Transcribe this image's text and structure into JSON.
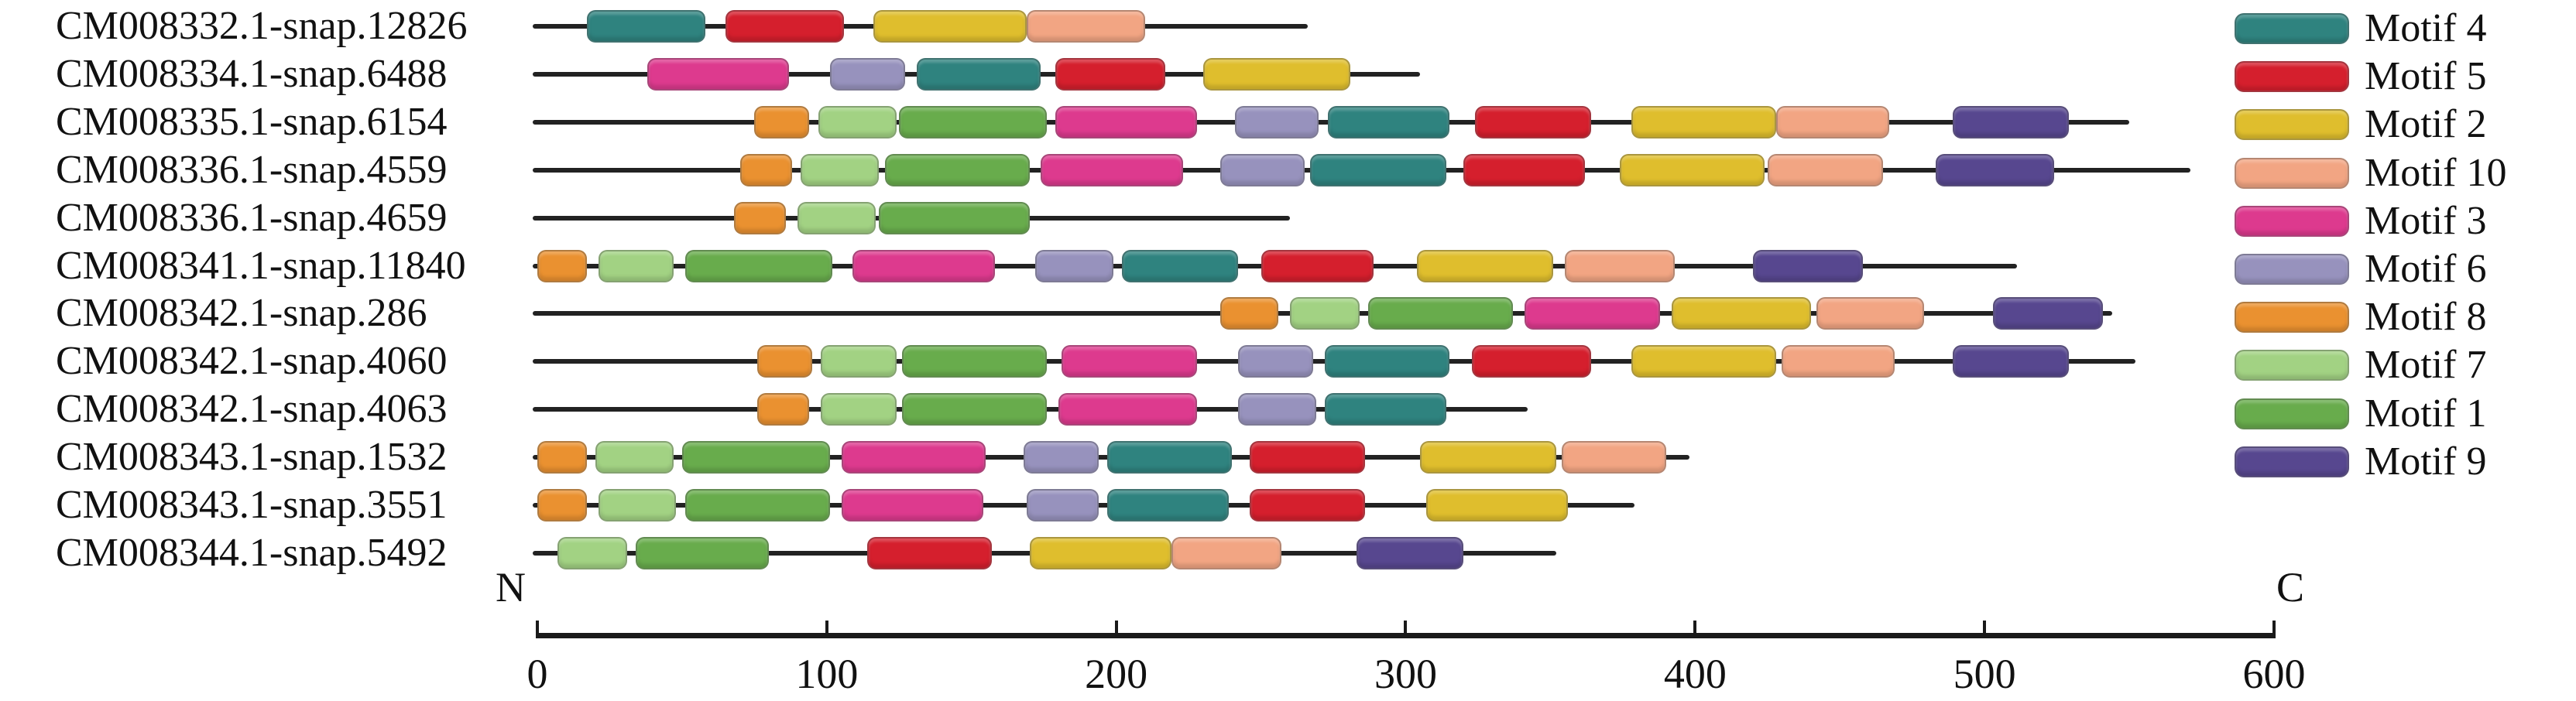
{
  "chart_data": {
    "type": "motif-map",
    "description": "Conserved motif distribution diagram (MEME-style) for 12 gene models",
    "axis": {
      "min": 0,
      "max": 600,
      "ticks": [
        0,
        100,
        200,
        300,
        400,
        500,
        600
      ],
      "n_label": "N",
      "c_label": "C"
    },
    "legend_position": "right",
    "legend": [
      {
        "id": "motif4",
        "label": "Motif 4",
        "color": "#2F837F"
      },
      {
        "id": "motif5",
        "label": "Motif 5",
        "color": "#D51F2D"
      },
      {
        "id": "motif2",
        "label": "Motif 2",
        "color": "#DFBE2D"
      },
      {
        "id": "motif10",
        "label": "Motif 10",
        "color": "#F2A583"
      },
      {
        "id": "motif3",
        "label": "Motif 3",
        "color": "#DD3A8E"
      },
      {
        "id": "motif6",
        "label": "Motif 6",
        "color": "#9792BD"
      },
      {
        "id": "motif8",
        "label": "Motif 8",
        "color": "#EA9130"
      },
      {
        "id": "motif7",
        "label": "Motif 7",
        "color": "#A2D283"
      },
      {
        "id": "motif1",
        "label": "Motif 1",
        "color": "#68AC4C"
      },
      {
        "id": "motif9",
        "label": "Motif 9",
        "color": "#57478F"
      }
    ],
    "genes": [
      {
        "name": "CM008332.1-snap.12826",
        "length": 265,
        "motifs": [
          {
            "motif": "motif4",
            "start": 17,
            "end": 58
          },
          {
            "motif": "motif5",
            "start": 65,
            "end": 106
          },
          {
            "motif": "motif2",
            "start": 116,
            "end": 169
          },
          {
            "motif": "motif10",
            "start": 169,
            "end": 210
          }
        ]
      },
      {
        "name": "CM008334.1-snap.6488",
        "length": 304,
        "motifs": [
          {
            "motif": "motif3",
            "start": 38,
            "end": 87
          },
          {
            "motif": "motif6",
            "start": 101,
            "end": 127
          },
          {
            "motif": "motif4",
            "start": 131,
            "end": 174
          },
          {
            "motif": "motif5",
            "start": 179,
            "end": 217
          },
          {
            "motif": "motif2",
            "start": 230,
            "end": 281
          }
        ]
      },
      {
        "name": "CM008335.1-snap.6154",
        "length": 549,
        "motifs": [
          {
            "motif": "motif8",
            "start": 75,
            "end": 94
          },
          {
            "motif": "motif7",
            "start": 97,
            "end": 124
          },
          {
            "motif": "motif1",
            "start": 125,
            "end": 176
          },
          {
            "motif": "motif3",
            "start": 179,
            "end": 228
          },
          {
            "motif": "motif6",
            "start": 241,
            "end": 270
          },
          {
            "motif": "motif4",
            "start": 273,
            "end": 315
          },
          {
            "motif": "motif5",
            "start": 324,
            "end": 364
          },
          {
            "motif": "motif2",
            "start": 378,
            "end": 428
          },
          {
            "motif": "motif10",
            "start": 428,
            "end": 467
          },
          {
            "motif": "motif9",
            "start": 489,
            "end": 529
          }
        ]
      },
      {
        "name": "CM008336.1-snap.4559",
        "length": 570,
        "motifs": [
          {
            "motif": "motif8",
            "start": 70,
            "end": 88
          },
          {
            "motif": "motif7",
            "start": 91,
            "end": 118
          },
          {
            "motif": "motif1",
            "start": 120,
            "end": 170
          },
          {
            "motif": "motif3",
            "start": 174,
            "end": 223
          },
          {
            "motif": "motif6",
            "start": 236,
            "end": 265
          },
          {
            "motif": "motif4",
            "start": 267,
            "end": 314
          },
          {
            "motif": "motif5",
            "start": 320,
            "end": 362
          },
          {
            "motif": "motif2",
            "start": 374,
            "end": 424
          },
          {
            "motif": "motif10",
            "start": 425,
            "end": 465
          },
          {
            "motif": "motif9",
            "start": 483,
            "end": 524
          }
        ]
      },
      {
        "name": "CM008336.1-snap.4659",
        "length": 259,
        "motifs": [
          {
            "motif": "motif8",
            "start": 68,
            "end": 86
          },
          {
            "motif": "motif7",
            "start": 90,
            "end": 117
          },
          {
            "motif": "motif1",
            "start": 118,
            "end": 170
          }
        ]
      },
      {
        "name": "CM008341.1-snap.11840",
        "length": 510,
        "motifs": [
          {
            "motif": "motif8",
            "start": 0,
            "end": 17
          },
          {
            "motif": "motif7",
            "start": 21,
            "end": 47
          },
          {
            "motif": "motif1",
            "start": 51,
            "end": 102
          },
          {
            "motif": "motif3",
            "start": 109,
            "end": 158
          },
          {
            "motif": "motif6",
            "start": 172,
            "end": 199
          },
          {
            "motif": "motif4",
            "start": 202,
            "end": 242
          },
          {
            "motif": "motif5",
            "start": 250,
            "end": 289
          },
          {
            "motif": "motif2",
            "start": 304,
            "end": 351
          },
          {
            "motif": "motif10",
            "start": 355,
            "end": 393
          },
          {
            "motif": "motif9",
            "start": 420,
            "end": 458
          }
        ]
      },
      {
        "name": "CM008342.1-snap.286",
        "length": 543,
        "motifs": [
          {
            "motif": "motif8",
            "start": 236,
            "end": 256
          },
          {
            "motif": "motif7",
            "start": 260,
            "end": 284
          },
          {
            "motif": "motif1",
            "start": 287,
            "end": 337
          },
          {
            "motif": "motif3",
            "start": 341,
            "end": 388
          },
          {
            "motif": "motif2",
            "start": 392,
            "end": 440
          },
          {
            "motif": "motif10",
            "start": 442,
            "end": 479
          },
          {
            "motif": "motif9",
            "start": 503,
            "end": 541
          }
        ]
      },
      {
        "name": "CM008342.1-snap.4060",
        "length": 551,
        "motifs": [
          {
            "motif": "motif8",
            "start": 76,
            "end": 95
          },
          {
            "motif": "motif7",
            "start": 98,
            "end": 124
          },
          {
            "motif": "motif1",
            "start": 126,
            "end": 176
          },
          {
            "motif": "motif3",
            "start": 181,
            "end": 228
          },
          {
            "motif": "motif6",
            "start": 242,
            "end": 268
          },
          {
            "motif": "motif4",
            "start": 272,
            "end": 315
          },
          {
            "motif": "motif5",
            "start": 323,
            "end": 364
          },
          {
            "motif": "motif2",
            "start": 378,
            "end": 428
          },
          {
            "motif": "motif10",
            "start": 430,
            "end": 469
          },
          {
            "motif": "motif9",
            "start": 489,
            "end": 529
          }
        ]
      },
      {
        "name": "CM008342.1-snap.4063",
        "length": 341,
        "motifs": [
          {
            "motif": "motif8",
            "start": 76,
            "end": 94
          },
          {
            "motif": "motif7",
            "start": 98,
            "end": 124
          },
          {
            "motif": "motif1",
            "start": 126,
            "end": 176
          },
          {
            "motif": "motif3",
            "start": 180,
            "end": 228
          },
          {
            "motif": "motif6",
            "start": 242,
            "end": 269
          },
          {
            "motif": "motif4",
            "start": 272,
            "end": 314
          }
        ]
      },
      {
        "name": "CM008343.1-snap.1532",
        "length": 397,
        "motifs": [
          {
            "motif": "motif8",
            "start": 0,
            "end": 17
          },
          {
            "motif": "motif7",
            "start": 20,
            "end": 47
          },
          {
            "motif": "motif1",
            "start": 50,
            "end": 101
          },
          {
            "motif": "motif3",
            "start": 105,
            "end": 155
          },
          {
            "motif": "motif6",
            "start": 168,
            "end": 194
          },
          {
            "motif": "motif4",
            "start": 197,
            "end": 240
          },
          {
            "motif": "motif5",
            "start": 246,
            "end": 286
          },
          {
            "motif": "motif2",
            "start": 305,
            "end": 352
          },
          {
            "motif": "motif10",
            "start": 354,
            "end": 390
          }
        ]
      },
      {
        "name": "CM008343.1-snap.3551",
        "length": 378,
        "motifs": [
          {
            "motif": "motif8",
            "start": 0,
            "end": 17
          },
          {
            "motif": "motif7",
            "start": 21,
            "end": 48
          },
          {
            "motif": "motif1",
            "start": 51,
            "end": 101
          },
          {
            "motif": "motif3",
            "start": 105,
            "end": 154
          },
          {
            "motif": "motif6",
            "start": 169,
            "end": 194
          },
          {
            "motif": "motif4",
            "start": 197,
            "end": 239
          },
          {
            "motif": "motif5",
            "start": 246,
            "end": 286
          },
          {
            "motif": "motif2",
            "start": 307,
            "end": 356
          }
        ]
      },
      {
        "name": "CM008344.1-snap.5492",
        "length": 351,
        "motifs": [
          {
            "motif": "motif7",
            "start": 7,
            "end": 31
          },
          {
            "motif": "motif1",
            "start": 34,
            "end": 80
          },
          {
            "motif": "motif5",
            "start": 114,
            "end": 157
          },
          {
            "motif": "motif2",
            "start": 170,
            "end": 219
          },
          {
            "motif": "motif10",
            "start": 219,
            "end": 257
          },
          {
            "motif": "motif9",
            "start": 283,
            "end": 320
          }
        ]
      }
    ]
  }
}
